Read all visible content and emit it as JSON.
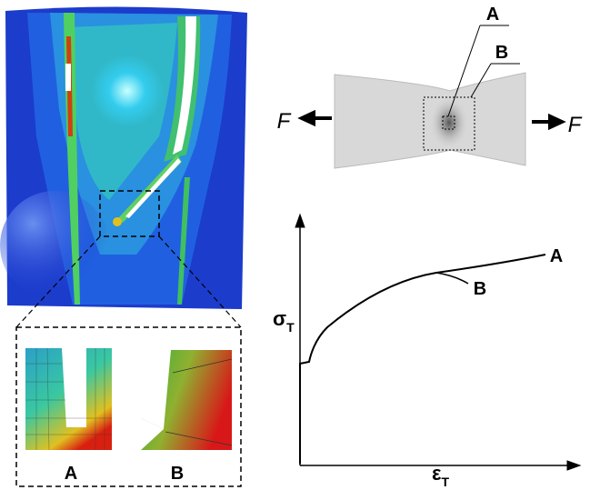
{
  "contour_panel": {
    "zoom_labels": [
      "A",
      "B"
    ]
  },
  "specimen": {
    "point_labels": [
      "A",
      "B"
    ],
    "force_labels": [
      "F",
      "F"
    ]
  },
  "curve_plot": {
    "y_axis_label": {
      "symbol": "σ",
      "subscript": "T"
    },
    "x_axis_label": {
      "symbol": "ε",
      "subscript": "T"
    },
    "curve_labels": [
      "A",
      "B"
    ]
  }
}
